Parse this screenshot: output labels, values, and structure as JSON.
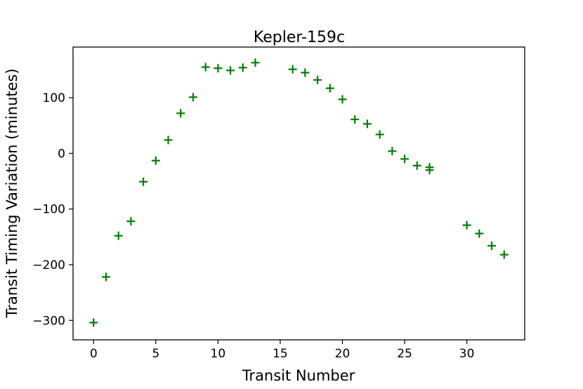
{
  "chart_data": {
    "type": "scatter",
    "title": "Kepler-159c",
    "xlabel": "Transit Number",
    "ylabel": "Transit Timing Variation (minutes)",
    "xlim": [
      -1.65,
      34.65
    ],
    "ylim": [
      -335,
      191
    ],
    "xticks": [
      0,
      5,
      10,
      15,
      20,
      25,
      30
    ],
    "yticks": [
      -300,
      -200,
      -100,
      0,
      100
    ],
    "ytick_labels": [
      "−300",
      "−200",
      "−100",
      "0",
      "100"
    ],
    "grid": false,
    "marker": "plus",
    "color": "#008000",
    "x": [
      0,
      1,
      2,
      3,
      4,
      5,
      6,
      7,
      8,
      9,
      10,
      11,
      12,
      13,
      16,
      17,
      18,
      19,
      20,
      21,
      22,
      23,
      24,
      25,
      26,
      27,
      27,
      30,
      31,
      32,
      33
    ],
    "y": [
      -304,
      -222,
      -148,
      -122,
      -51,
      -13,
      24,
      72,
      101,
      155,
      153,
      149,
      154,
      163,
      151,
      145,
      132,
      117,
      97,
      61,
      53,
      34,
      4,
      -10,
      -22,
      -25,
      -30,
      -129,
      -144,
      -166,
      -182
    ]
  }
}
